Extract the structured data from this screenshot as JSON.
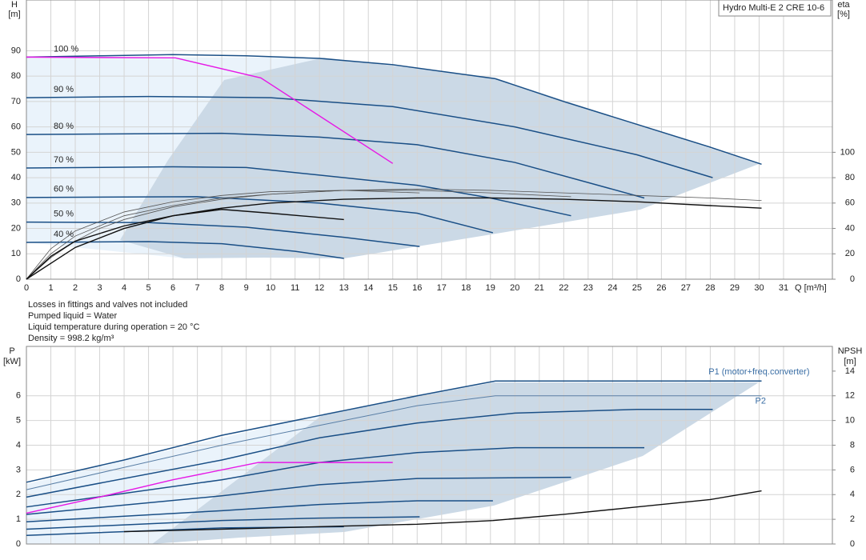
{
  "chart_data": [
    {
      "type": "line",
      "title": "Hydro Multi-E 2 CRE 10-6",
      "ylabel": [
        "H",
        "[m]"
      ],
      "y2label": [
        "eta",
        "[%]"
      ],
      "xlabel": "Q [m³/h]",
      "xlim": [
        0,
        33
      ],
      "ylim": [
        0,
        110
      ],
      "y2lim": [
        0,
        220
      ],
      "xticks": [
        0,
        1,
        2,
        3,
        4,
        5,
        6,
        7,
        8,
        9,
        10,
        11,
        12,
        13,
        14,
        15,
        16,
        17,
        18,
        19,
        20,
        21,
        22,
        23,
        24,
        25,
        26,
        27,
        28,
        29,
        30,
        31
      ],
      "yticks": [
        0,
        10,
        20,
        30,
        40,
        50,
        60,
        70,
        80,
        90
      ],
      "y2ticks": [
        0,
        20,
        40,
        60,
        80,
        100
      ],
      "show_xtick_labels": true,
      "grid": true,
      "notes": [
        "Losses in fittings and valves not included",
        "Pumped liquid = Water",
        "Liquid temperature during operation = 20 °C",
        "Density = 998.2 kg/m³"
      ],
      "series": [
        {
          "name": "100 %",
          "color": "#1a4f86",
          "line_width": 1.5,
          "x": [
            0,
            3,
            6,
            9,
            12,
            15,
            19.2,
            22,
            25,
            28,
            30.1
          ],
          "values": [
            87.5,
            88,
            88.5,
            88,
            87,
            84.5,
            79,
            70,
            61,
            52,
            45.3
          ]
        },
        {
          "name": "90 %",
          "color": "#1a4f86",
          "line_width": 1.5,
          "x": [
            0,
            5,
            10,
            15,
            20,
            25,
            28.1
          ],
          "values": [
            71.5,
            72,
            71.5,
            68,
            60,
            49,
            40
          ]
        },
        {
          "name": "80 %",
          "color": "#1a4f86",
          "line_width": 1.5,
          "x": [
            0,
            8,
            12,
            16,
            20,
            25.3
          ],
          "values": [
            57,
            57.5,
            56,
            53,
            46,
            32
          ]
        },
        {
          "name": "70 %",
          "color": "#1a4f86",
          "line_width": 1.5,
          "x": [
            0,
            6,
            9,
            12,
            16,
            19,
            22.3
          ],
          "values": [
            43.8,
            44.3,
            44,
            41,
            37,
            32,
            25
          ]
        },
        {
          "name": "60 %",
          "color": "#1a4f86",
          "line_width": 1.5,
          "x": [
            0,
            7,
            12,
            16,
            19.1
          ],
          "values": [
            32.2,
            32.5,
            30,
            26,
            18.3
          ]
        },
        {
          "name": "50 %",
          "color": "#1a4f86",
          "line_width": 1.5,
          "x": [
            0,
            5,
            9,
            13,
            16.1
          ],
          "values": [
            22.5,
            22.3,
            20.5,
            16.5,
            12.9
          ]
        },
        {
          "name": "40 %",
          "color": "#1a4f86",
          "line_width": 1.5,
          "x": [
            0,
            5,
            8,
            11,
            13
          ],
          "values": [
            14.5,
            14.8,
            14,
            11,
            8.2
          ]
        },
        {
          "color": "#555555",
          "line_width": 0.8,
          "axis": "y2",
          "x": [
            0,
            1,
            2,
            3,
            4,
            6,
            8,
            10,
            13,
            16,
            19,
            22,
            25,
            28,
            30.1
          ],
          "values": [
            0,
            17,
            30,
            40,
            47,
            57,
            63,
            67,
            70,
            71,
            70,
            68,
            66,
            64,
            62
          ]
        },
        {
          "color": "#555555",
          "line_width": 0.8,
          "axis": "y2",
          "x": [
            0,
            1,
            2,
            4,
            6,
            8,
            10,
            13,
            16,
            19,
            22.3
          ],
          "values": [
            0,
            20,
            34,
            50,
            58,
            64,
            67,
            70,
            70,
            68,
            65
          ]
        },
        {
          "color": "#555555",
          "line_width": 0.8,
          "axis": "y2",
          "x": [
            0,
            1,
            2,
            4,
            6,
            8,
            10,
            13,
            16.1
          ],
          "values": [
            0,
            24,
            38,
            53,
            61,
            66,
            69,
            70,
            68
          ]
        },
        {
          "color": "#111111",
          "line_width": 1.4,
          "axis": "y2",
          "x": [
            0,
            2,
            4,
            6,
            8,
            10,
            13,
            16,
            19,
            22,
            25,
            28,
            30.1
          ],
          "values": [
            0,
            25,
            40,
            50,
            56,
            60,
            63,
            64,
            64,
            63,
            61,
            58,
            56
          ]
        },
        {
          "color": "#111111",
          "line_width": 1.4,
          "axis": "y2",
          "x": [
            0,
            1,
            2,
            4,
            6,
            8,
            10,
            13
          ],
          "values": [
            0,
            18,
            30,
            42,
            50,
            55,
            52,
            47
          ]
        },
        {
          "color": "#e619e6",
          "line_width": 1.4,
          "x": [
            0,
            6.1,
            9.6,
            15
          ],
          "values": [
            87.5,
            87.2,
            79.3,
            45.6
          ]
        }
      ]
    },
    {
      "type": "line",
      "ylabel": [
        "P",
        "[kW]"
      ],
      "y2label": [
        "NPSH",
        "[m]"
      ],
      "xlim": [
        0,
        33
      ],
      "ylim": [
        0,
        8
      ],
      "y2lim": [
        0,
        16
      ],
      "xticks": [
        0,
        1,
        2,
        3,
        4,
        5,
        6,
        7,
        8,
        9,
        10,
        11,
        12,
        13,
        14,
        15,
        16,
        17,
        18,
        19,
        20,
        21,
        22,
        23,
        24,
        25,
        26,
        27,
        28,
        29,
        30,
        31
      ],
      "yticks": [
        0,
        1,
        2,
        3,
        4,
        5,
        6
      ],
      "y2ticks": [
        0,
        2,
        4,
        6,
        8,
        10,
        12,
        14
      ],
      "show_xtick_labels": false,
      "grid": true,
      "series": [
        {
          "name": "P1 (motor+freq.converter)",
          "color": "#1a4f86",
          "line_width": 1.5,
          "x": [
            0,
            4,
            8,
            12,
            16,
            19.2,
            25,
            30.1
          ],
          "values": [
            2.5,
            3.4,
            4.4,
            5.2,
            6.0,
            6.6,
            6.6,
            6.6
          ]
        },
        {
          "name": "P2",
          "color": "#5a7fa6",
          "line_width": 1.0,
          "x": [
            0,
            4,
            8,
            12,
            16,
            19.2,
            30.1
          ],
          "values": [
            2.2,
            3.1,
            4.0,
            4.8,
            5.6,
            6.0,
            6.0
          ]
        },
        {
          "color": "#1a4f86",
          "line_width": 1.5,
          "x": [
            0,
            8,
            12,
            16,
            20,
            25,
            28.1
          ],
          "values": [
            1.9,
            3.4,
            4.3,
            4.9,
            5.3,
            5.45,
            5.45
          ]
        },
        {
          "color": "#1a4f86",
          "line_width": 1.5,
          "x": [
            0,
            8,
            12,
            16,
            20,
            25.3
          ],
          "values": [
            1.5,
            2.6,
            3.3,
            3.7,
            3.9,
            3.9
          ]
        },
        {
          "color": "#1a4f86",
          "line_width": 1.5,
          "x": [
            0,
            8,
            12,
            16,
            22.3
          ],
          "values": [
            1.2,
            1.95,
            2.4,
            2.65,
            2.7
          ]
        },
        {
          "color": "#1a4f86",
          "line_width": 1.5,
          "x": [
            0,
            8,
            12,
            16,
            19.1
          ],
          "values": [
            0.9,
            1.35,
            1.6,
            1.75,
            1.75
          ]
        },
        {
          "color": "#1a4f86",
          "line_width": 1.5,
          "x": [
            0,
            8,
            12,
            16.1
          ],
          "values": [
            0.6,
            0.95,
            1.05,
            1.1
          ]
        },
        {
          "color": "#1a4f86",
          "line_width": 1.5,
          "x": [
            0,
            8,
            13
          ],
          "values": [
            0.35,
            0.65,
            0.7
          ]
        },
        {
          "color": "#111111",
          "line_width": 1.4,
          "axis": "y2",
          "x": [
            4,
            10,
            16,
            19.1,
            22,
            25,
            28,
            30.1
          ],
          "values": [
            1.0,
            1.3,
            1.6,
            1.9,
            2.4,
            3.0,
            3.6,
            4.3
          ]
        },
        {
          "color": "#e619e6",
          "line_width": 1.4,
          "x": [
            0,
            3,
            6,
            9.5,
            15
          ],
          "values": [
            1.25,
            1.9,
            2.6,
            3.3,
            3.3
          ]
        }
      ]
    }
  ]
}
